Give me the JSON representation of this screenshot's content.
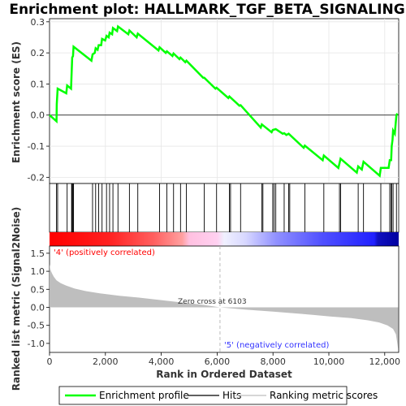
{
  "chart_data": {
    "type": "line",
    "title": "Enrichment plot: HALLMARK_TGF_BETA_SIGNALING",
    "es_panel": {
      "ylabel": "Enrichment score (ES)",
      "ylim": [
        -0.22,
        0.31
      ],
      "yticks": [
        "0.3",
        "0.2",
        "0.1",
        "0.0",
        "-0.1",
        "-0.2"
      ],
      "series_color": "#00ff00",
      "es_points": [
        [
          0,
          0.0
        ],
        [
          250,
          -0.02
        ],
        [
          260,
          0.035
        ],
        [
          290,
          0.085
        ],
        [
          600,
          0.07
        ],
        [
          630,
          0.095
        ],
        [
          770,
          0.085
        ],
        [
          790,
          0.135
        ],
        [
          810,
          0.185
        ],
        [
          840,
          0.19
        ],
        [
          860,
          0.22
        ],
        [
          1500,
          0.175
        ],
        [
          1540,
          0.195
        ],
        [
          1620,
          0.2
        ],
        [
          1650,
          0.215
        ],
        [
          1720,
          0.21
        ],
        [
          1760,
          0.225
        ],
        [
          1850,
          0.225
        ],
        [
          1880,
          0.245
        ],
        [
          1990,
          0.24
        ],
        [
          2040,
          0.255
        ],
        [
          2120,
          0.25
        ],
        [
          2150,
          0.265
        ],
        [
          2240,
          0.26
        ],
        [
          2270,
          0.28
        ],
        [
          2420,
          0.27
        ],
        [
          2450,
          0.285
        ],
        [
          2820,
          0.26
        ],
        [
          2860,
          0.272
        ],
        [
          3120,
          0.25
        ],
        [
          3160,
          0.262
        ],
        [
          3900,
          0.208
        ],
        [
          3940,
          0.218
        ],
        [
          4160,
          0.2
        ],
        [
          4200,
          0.205
        ],
        [
          4400,
          0.19
        ],
        [
          4440,
          0.198
        ],
        [
          4650,
          0.18
        ],
        [
          4690,
          0.185
        ],
        [
          4860,
          0.17
        ],
        [
          4900,
          0.175
        ],
        [
          5500,
          0.12
        ],
        [
          5540,
          0.12
        ],
        [
          5940,
          0.085
        ],
        [
          5980,
          0.088
        ],
        [
          6400,
          0.055
        ],
        [
          6440,
          0.06
        ],
        [
          6800,
          0.03
        ],
        [
          6840,
          0.032
        ],
        [
          7560,
          -0.04
        ],
        [
          7600,
          -0.03
        ],
        [
          7950,
          -0.055
        ],
        [
          7990,
          -0.048
        ],
        [
          8100,
          -0.045
        ],
        [
          8350,
          -0.06
        ],
        [
          8400,
          -0.058
        ],
        [
          8480,
          -0.064
        ],
        [
          8560,
          -0.06
        ],
        [
          9100,
          -0.105
        ],
        [
          9140,
          -0.098
        ],
        [
          9780,
          -0.145
        ],
        [
          9820,
          -0.13
        ],
        [
          10340,
          -0.17
        ],
        [
          10380,
          -0.155
        ],
        [
          10420,
          -0.14
        ],
        [
          11000,
          -0.185
        ],
        [
          11050,
          -0.165
        ],
        [
          11180,
          -0.175
        ],
        [
          11240,
          -0.15
        ],
        [
          11820,
          -0.195
        ],
        [
          11860,
          -0.17
        ],
        [
          12140,
          -0.17
        ],
        [
          12180,
          -0.145
        ],
        [
          12230,
          -0.145
        ],
        [
          12250,
          -0.1
        ],
        [
          12280,
          -0.08
        ],
        [
          12300,
          -0.05
        ],
        [
          12360,
          -0.06
        ],
        [
          12420,
          0.0
        ],
        [
          12450,
          0.005
        ]
      ]
    },
    "hits": {
      "positions": [
        250,
        290,
        630,
        790,
        810,
        840,
        860,
        1540,
        1650,
        1760,
        1880,
        2040,
        2150,
        2270,
        2450,
        2860,
        3160,
        3940,
        4200,
        4440,
        4690,
        4900,
        5540,
        5980,
        6440,
        6480,
        6840,
        7600,
        7640,
        7990,
        8040,
        8100,
        8400,
        8560,
        8600,
        9140,
        9820,
        10380,
        10420,
        11050,
        11240,
        11860,
        12180,
        12230,
        12250,
        12300,
        12420
      ]
    },
    "rank_panel": {
      "ylabel": "Ranked list metric (Signal2Noise)",
      "xlabel": "Rank in Ordered Dataset",
      "ylim": [
        -1.25,
        1.7
      ],
      "yticks": [
        "1.5",
        "1.0",
        "0.5",
        "0.0",
        "-0.5",
        "-1.0"
      ],
      "xlim": [
        0,
        12500
      ],
      "xticks": [
        "0",
        "2,000",
        "4,000",
        "6,000",
        "8,000",
        "10,000",
        "12,000"
      ],
      "fill_color": "#bebebe",
      "metric_points": [
        [
          0,
          1.2
        ],
        [
          30,
          1.05
        ],
        [
          80,
          0.95
        ],
        [
          150,
          0.85
        ],
        [
          250,
          0.75
        ],
        [
          400,
          0.67
        ],
        [
          600,
          0.6
        ],
        [
          900,
          0.52
        ],
        [
          1300,
          0.45
        ],
        [
          1800,
          0.39
        ],
        [
          2500,
          0.32
        ],
        [
          3200,
          0.27
        ],
        [
          4000,
          0.2
        ],
        [
          4800,
          0.13
        ],
        [
          5500,
          0.07
        ],
        [
          6103,
          0.0
        ],
        [
          7000,
          -0.06
        ],
        [
          8000,
          -0.12
        ],
        [
          9000,
          -0.18
        ],
        [
          10000,
          -0.25
        ],
        [
          10800,
          -0.3
        ],
        [
          11400,
          -0.36
        ],
        [
          11800,
          -0.42
        ],
        [
          12100,
          -0.5
        ],
        [
          12300,
          -0.6
        ],
        [
          12400,
          -0.75
        ],
        [
          12450,
          -1.0
        ],
        [
          12480,
          -1.15
        ]
      ],
      "zero_cross_label": "Zero cross at 6103",
      "zero_cross_rank": 6103,
      "pos_label": "'4' (positively correlated)",
      "neg_label": "'5' (negatively correlated)"
    },
    "legend": {
      "placement": "bottom",
      "entries": [
        {
          "label": "Enrichment profile",
          "color": "#00ff00"
        },
        {
          "label": "Hits",
          "color": "#000000"
        },
        {
          "label": "Ranking metric scores",
          "color": "#bebebe"
        }
      ]
    },
    "grid": true
  }
}
